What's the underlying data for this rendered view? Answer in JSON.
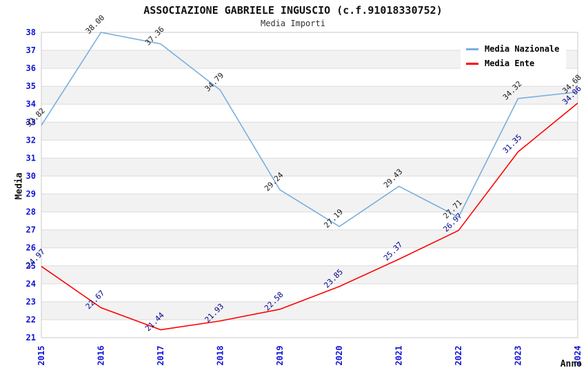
{
  "chart_data": {
    "type": "line",
    "title": "ASSOCIAZIONE GABRIELE INGUSCIO (c.f.91018330752)",
    "subtitle": "Media Importi",
    "xlabel": "Anno",
    "ylabel": "Media",
    "x": [
      2015,
      2016,
      2017,
      2018,
      2019,
      2020,
      2021,
      2022,
      2023,
      2024
    ],
    "ylim": [
      21,
      38
    ],
    "grid": true,
    "legend_position": "top-right",
    "series": [
      {
        "name": "Media Nazionale",
        "color": "#79aede",
        "label_color": "#1a1a1a",
        "values": [
          32.82,
          38.0,
          37.36,
          34.79,
          29.24,
          27.19,
          29.43,
          27.71,
          34.32,
          34.68
        ]
      },
      {
        "name": "Media Ente",
        "color": "#fe0000",
        "label_color": "#00008b",
        "values": [
          24.97,
          22.67,
          21.44,
          21.93,
          22.58,
          23.85,
          25.37,
          26.97,
          31.35,
          34.06
        ]
      }
    ],
    "styles": {
      "tick_color": "#1212d6",
      "band_color": "#f2f2f2",
      "grid_color": "#dcdcdc",
      "border_color": "#c9c9c9",
      "title_color": "#111111",
      "subtitle_color": "#333333"
    }
  }
}
